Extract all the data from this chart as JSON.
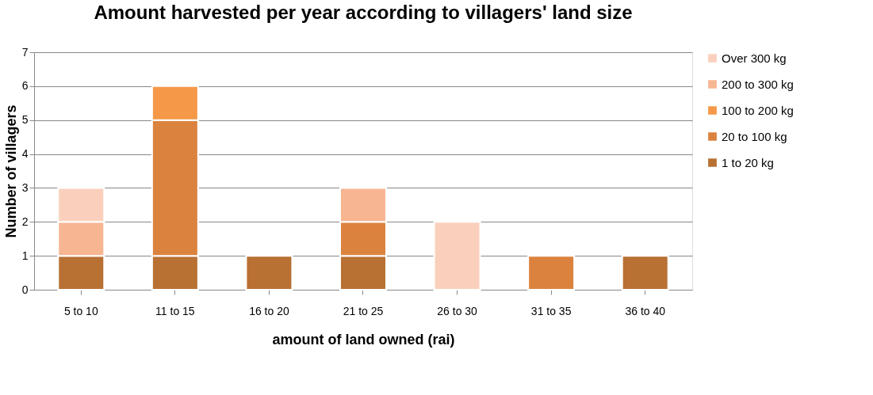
{
  "chart_data": {
    "type": "bar",
    "title": "Amount harvested per year according to villagers' land size",
    "xlabel": "amount of land owned (rai)",
    "ylabel": "Number of villagers",
    "categories": [
      "5 to 10",
      "11 to 15",
      "16 to 20",
      "21 to 25",
      "26 to 30",
      "31 to 35",
      "36 to 40"
    ],
    "stacked": true,
    "series": [
      {
        "name": "1 to 20 kg",
        "color": "#b87033",
        "values": [
          1,
          1,
          1,
          1,
          null,
          null,
          1
        ]
      },
      {
        "name": "20 to 100 kg",
        "color": "#db833e",
        "values": [
          null,
          4,
          null,
          1,
          null,
          1,
          null
        ]
      },
      {
        "name": "100 to 200 kg",
        "color": "#f59948",
        "values": [
          null,
          1,
          null,
          null,
          null,
          null,
          null
        ]
      },
      {
        "name": "200 to 300 kg",
        "color": "#f7b592",
        "values": [
          1,
          null,
          null,
          1,
          null,
          null,
          null
        ]
      },
      {
        "name": "Over 300 kg",
        "color": "#fad0bc",
        "values": [
          1,
          null,
          null,
          null,
          2,
          null,
          null
        ]
      }
    ],
    "ylim": [
      0,
      7
    ],
    "yticks": [
      0,
      1,
      2,
      3,
      4,
      5,
      6,
      7
    ],
    "grid": "y",
    "legend": "right"
  }
}
